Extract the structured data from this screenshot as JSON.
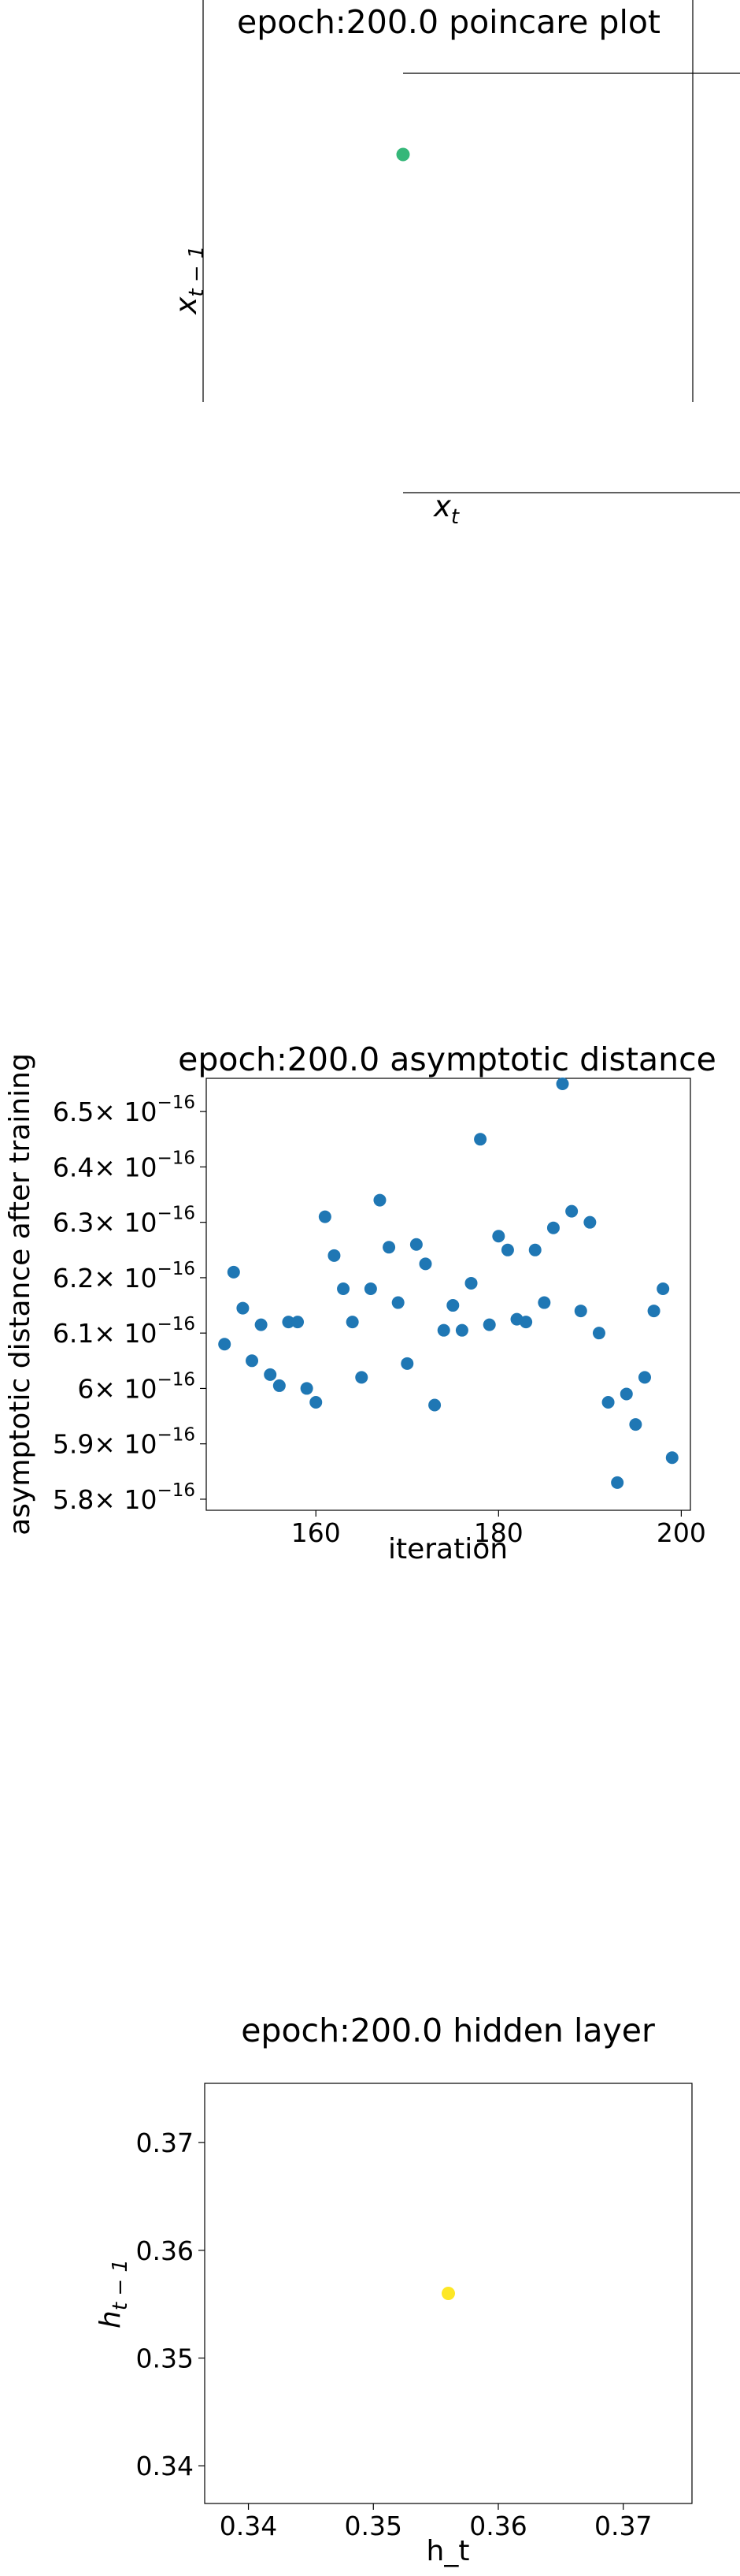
{
  "chart_data": [
    {
      "type": "scatter",
      "title": "epoch:200.0 poincare plot",
      "xlabel": "x_t",
      "ylabel": "x_{t-1}",
      "series": [
        {
          "color": "#35b779",
          "points": [
            [
              0,
              0
            ]
          ]
        }
      ]
    },
    {
      "type": "scatter",
      "title": "epoch:200.0 asymptotic distance",
      "xlabel": "iteration",
      "ylabel": "asymptotic distance after training",
      "xlim": [
        148,
        201
      ],
      "ylim": [
        5.78e-16,
        6.56e-16
      ],
      "x_ticks": [
        160,
        180,
        200
      ],
      "y_ticks": [
        {
          "mantissa": "5.8",
          "value": 5.8e-16
        },
        {
          "mantissa": "5.9",
          "value": 5.9e-16
        },
        {
          "mantissa": "6",
          "value": 6e-16
        },
        {
          "mantissa": "6.1",
          "value": 6.1e-16
        },
        {
          "mantissa": "6.2",
          "value": 6.2e-16
        },
        {
          "mantissa": "6.3",
          "value": 6.3e-16
        },
        {
          "mantissa": "6.4",
          "value": 6.4e-16
        },
        {
          "mantissa": "6.5",
          "value": 6.5e-16
        }
      ],
      "y_tick_base": "× 10",
      "y_tick_exponent": "−16",
      "series": [
        {
          "color": "#1f77b4",
          "x": [
            150,
            151,
            152,
            153,
            154,
            155,
            156,
            157,
            158,
            159,
            160,
            161,
            162,
            163,
            164,
            165,
            166,
            167,
            168,
            169,
            170,
            171,
            172,
            173,
            174,
            175,
            176,
            177,
            178,
            179,
            180,
            181,
            182,
            183,
            184,
            185,
            186,
            187,
            188,
            189,
            190,
            191,
            192,
            193,
            194,
            195,
            196,
            197,
            198,
            199
          ],
          "y": [
            6.08,
            6.21,
            6.145,
            6.05,
            6.115,
            6.025,
            6.005,
            6.12,
            6.12,
            6.0,
            5.975,
            6.31,
            6.24,
            6.18,
            6.12,
            6.02,
            6.18,
            6.34,
            6.255,
            6.155,
            6.045,
            6.26,
            6.225,
            5.97,
            6.105,
            6.15,
            6.105,
            6.19,
            6.45,
            6.115,
            6.275,
            6.25,
            6.125,
            6.12,
            6.25,
            6.155,
            6.29,
            6.55,
            6.32,
            6.14,
            6.3,
            6.1,
            5.975,
            5.83,
            5.99,
            5.935,
            6.02,
            6.14,
            6.18,
            5.875
          ]
        }
      ]
    },
    {
      "type": "scatter",
      "title": "epoch:200.0 hidden layer",
      "xlabel": "h_t",
      "ylabel": "h_{t-1}",
      "xlim": [
        0.3365,
        0.3755
      ],
      "ylim": [
        0.3365,
        0.3755
      ],
      "x_ticks": [
        "0.34",
        "0.35",
        "0.36",
        "0.37"
      ],
      "y_ticks": [
        "0.34",
        "0.35",
        "0.36",
        "0.37"
      ],
      "series": [
        {
          "color": "#fde725",
          "points": [
            [
              0.356,
              0.356
            ]
          ]
        }
      ]
    }
  ]
}
